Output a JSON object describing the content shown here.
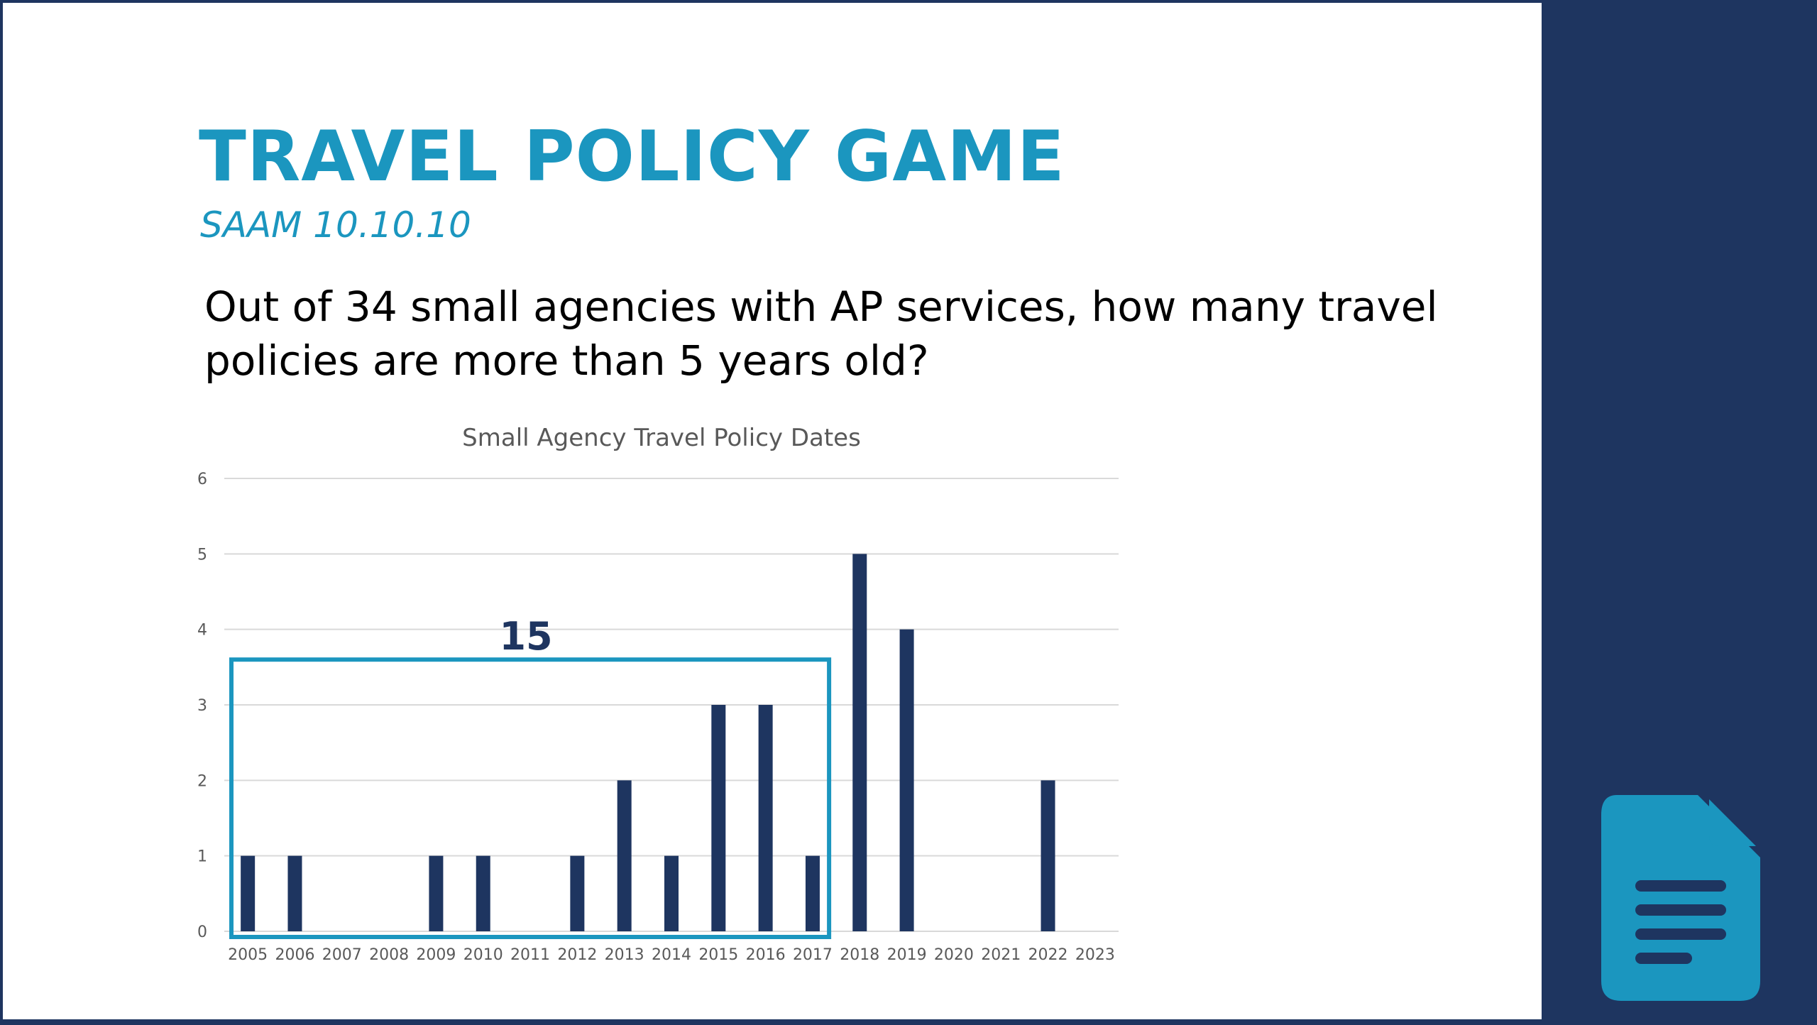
{
  "slide": {
    "title": "TRAVEL POLICY GAME",
    "subtitle": "SAAM 10.10.10",
    "question": "Out of 34 small agencies with AP services, how many travel policies are more than 5 years old?"
  },
  "colors": {
    "accent": "#1b96bf",
    "navy": "#1e3560",
    "bar": "#1e3560",
    "grid": "#d9d9d9",
    "text": "#000000",
    "axis_text": "#595959"
  },
  "icon": {
    "name": "document-icon"
  },
  "chart_data": {
    "type": "bar",
    "title": "Small Agency Travel Policy Dates",
    "xlabel": "",
    "ylabel": "",
    "categories": [
      "2005",
      "2006",
      "2007",
      "2008",
      "2009",
      "2010",
      "2011",
      "2012",
      "2013",
      "2014",
      "2015",
      "2016",
      "2017",
      "2018",
      "2019",
      "2020",
      "2021",
      "2022",
      "2023"
    ],
    "values": [
      1,
      1,
      0,
      0,
      1,
      1,
      0,
      1,
      2,
      1,
      3,
      3,
      1,
      5,
      4,
      0,
      0,
      2,
      0
    ],
    "yticks": [
      "0",
      "1",
      "2",
      "3",
      "4",
      "5",
      "6"
    ],
    "ylim": [
      0,
      6
    ],
    "grid": true,
    "legend": "none",
    "annotation": {
      "label": "15",
      "from_category": "2005",
      "to_category": "2017",
      "type": "highlight-box"
    }
  }
}
